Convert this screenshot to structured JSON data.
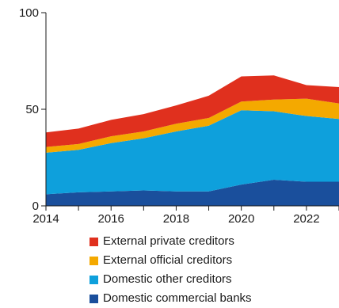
{
  "chart_data": {
    "type": "area",
    "stacked": true,
    "x": [
      2014,
      2015,
      2016,
      2017,
      2018,
      2019,
      2020,
      2021,
      2022,
      2023
    ],
    "series": [
      {
        "name": "Domestic commercial banks",
        "color": "#1a4f9c",
        "values": [
          6,
          7,
          7.5,
          8,
          7.5,
          7.5,
          11,
          13.5,
          12.5,
          12.5
        ]
      },
      {
        "name": "Domestic other creditors",
        "color": "#0ea0dc",
        "values": [
          21.5,
          22,
          25,
          27,
          31,
          34,
          38.5,
          35.5,
          34,
          32.5
        ]
      },
      {
        "name": "External official creditors",
        "color": "#f4a900",
        "values": [
          3,
          3,
          3.5,
          3.5,
          4,
          4,
          4.5,
          6,
          9,
          8
        ]
      },
      {
        "name": "External private creditors",
        "color": "#e0301e",
        "values": [
          7.5,
          8,
          8.5,
          9,
          9.5,
          11.5,
          13,
          12.5,
          7,
          8.5
        ]
      }
    ],
    "xlim": [
      2014,
      2023
    ],
    "ylim": [
      0,
      100
    ],
    "yticks": [
      "0",
      "50",
      "100"
    ],
    "xticks": [
      "2014",
      "2016",
      "2018",
      "2020",
      "2022"
    ],
    "legend_order": [
      3,
      2,
      1,
      0
    ],
    "legend_position": "bottom",
    "grid": false
  }
}
